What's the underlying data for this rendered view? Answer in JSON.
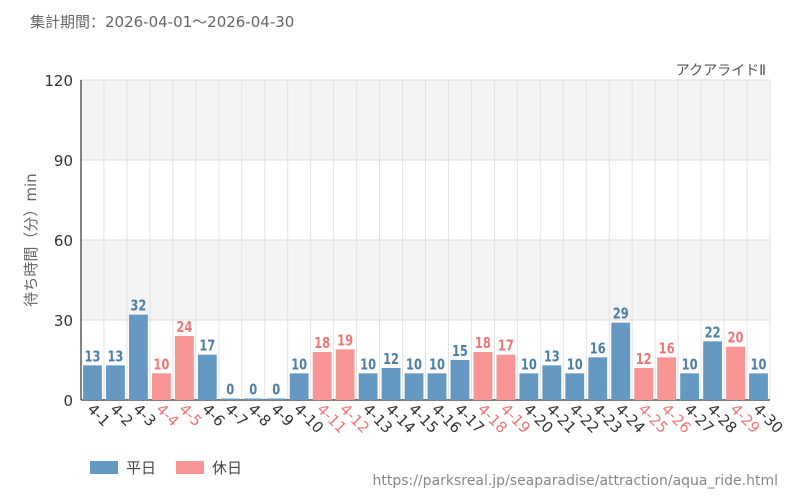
{
  "period_label": "集計期間：2026-04-01～2026-04-30",
  "legend": {
    "weekday": "平日",
    "holiday": "休日"
  },
  "source_url": "https://parksreal.jp/seaparadise/attraction/aqua_ride.html",
  "colors": {
    "weekday": "#6699c2",
    "holiday": "#f79494",
    "weekday_text": "#4d7fa8",
    "holiday_text": "#ee7777"
  },
  "chart_data": {
    "type": "bar",
    "title": "アクアライドⅡ",
    "ylabel": "待ち時間（分）min",
    "ylim": [
      0,
      120
    ],
    "yticks": [
      0,
      30,
      60,
      90,
      120
    ],
    "categories": [
      "4-1",
      "4-2",
      "4-3",
      "4-4",
      "4-5",
      "4-6",
      "4-7",
      "4-8",
      "4-9",
      "4-10",
      "4-11",
      "4-12",
      "4-13",
      "4-14",
      "4-15",
      "4-16",
      "4-17",
      "4-18",
      "4-19",
      "4-20",
      "4-21",
      "4-22",
      "4-23",
      "4-24",
      "4-25",
      "4-26",
      "4-27",
      "4-28",
      "4-29",
      "4-30"
    ],
    "values": [
      13,
      13,
      32,
      10,
      24,
      17,
      0,
      0,
      0,
      10,
      18,
      19,
      10,
      12,
      10,
      10,
      15,
      18,
      17,
      10,
      13,
      10,
      16,
      29,
      12,
      16,
      10,
      22,
      20,
      10
    ],
    "day_type": [
      "weekday",
      "weekday",
      "weekday",
      "holiday",
      "holiday",
      "weekday",
      "weekday",
      "weekday",
      "weekday",
      "weekday",
      "holiday",
      "holiday",
      "weekday",
      "weekday",
      "weekday",
      "weekday",
      "weekday",
      "holiday",
      "holiday",
      "weekday",
      "weekday",
      "weekday",
      "weekday",
      "weekday",
      "holiday",
      "holiday",
      "weekday",
      "weekday",
      "holiday",
      "weekday"
    ],
    "grid": true
  }
}
